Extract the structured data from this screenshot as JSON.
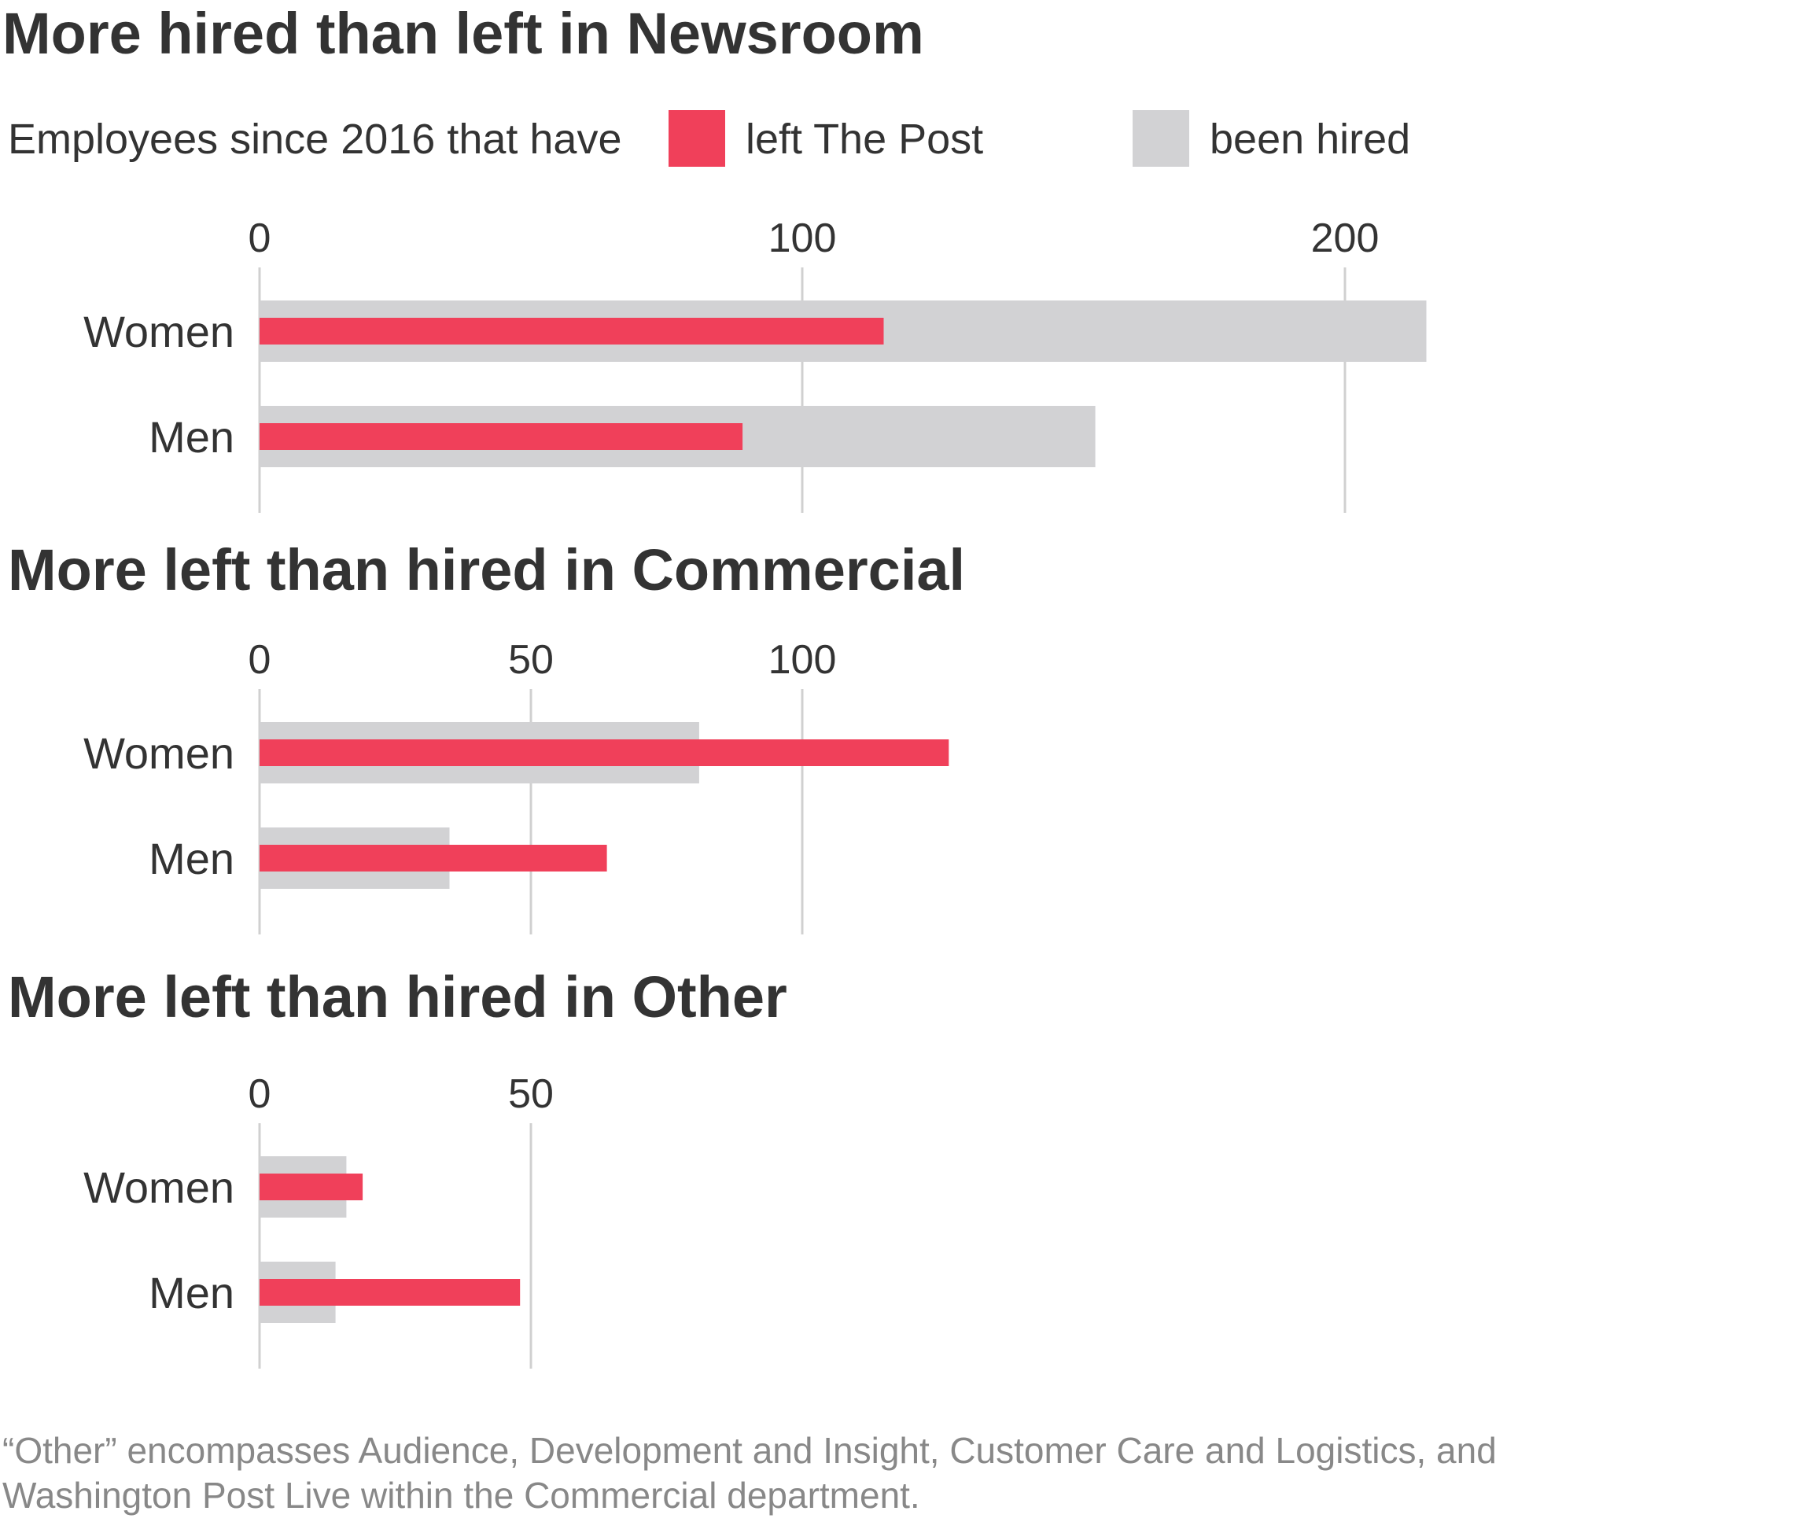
{
  "legend": {
    "intro": "Employees since 2016 that have",
    "left_label": "left The Post",
    "hired_label": "been hired"
  },
  "colors": {
    "left": "#f0405a",
    "hired": "#d2d2d4",
    "grid": "#d0d0d0",
    "text": "#333333",
    "note": "#888888"
  },
  "chart_data": [
    {
      "type": "bar",
      "orientation": "horizontal",
      "title": "More hired than left in Newsroom",
      "categories": [
        "Women",
        "Men"
      ],
      "series": [
        {
          "name": "been hired",
          "values": [
            215,
            154
          ]
        },
        {
          "name": "left The Post",
          "values": [
            115,
            89
          ]
        }
      ],
      "xticks": [
        0,
        100,
        200
      ],
      "xlim": [
        0,
        215
      ],
      "grid": true
    },
    {
      "type": "bar",
      "orientation": "horizontal",
      "title": "More left than hired in Commercial",
      "categories": [
        "Women",
        "Men"
      ],
      "series": [
        {
          "name": "been hired",
          "values": [
            81,
            35
          ]
        },
        {
          "name": "left The Post",
          "values": [
            127,
            64
          ]
        }
      ],
      "xticks": [
        0,
        50,
        100
      ],
      "xlim": [
        0,
        127
      ],
      "grid": true
    },
    {
      "type": "bar",
      "orientation": "horizontal",
      "title": "More left than hired in Other",
      "categories": [
        "Women",
        "Men"
      ],
      "series": [
        {
          "name": "been hired",
          "values": [
            16,
            14
          ]
        },
        {
          "name": "left The Post",
          "values": [
            19,
            48
          ]
        }
      ],
      "xticks": [
        0,
        50
      ],
      "xlim": [
        0,
        48
      ],
      "grid": true
    }
  ],
  "footnote": {
    "line1": "“Other” encompasses Audience, Development and Insight, Customer Care and Logistics, and",
    "line2": "Washington Post Live within the Commercial department."
  }
}
